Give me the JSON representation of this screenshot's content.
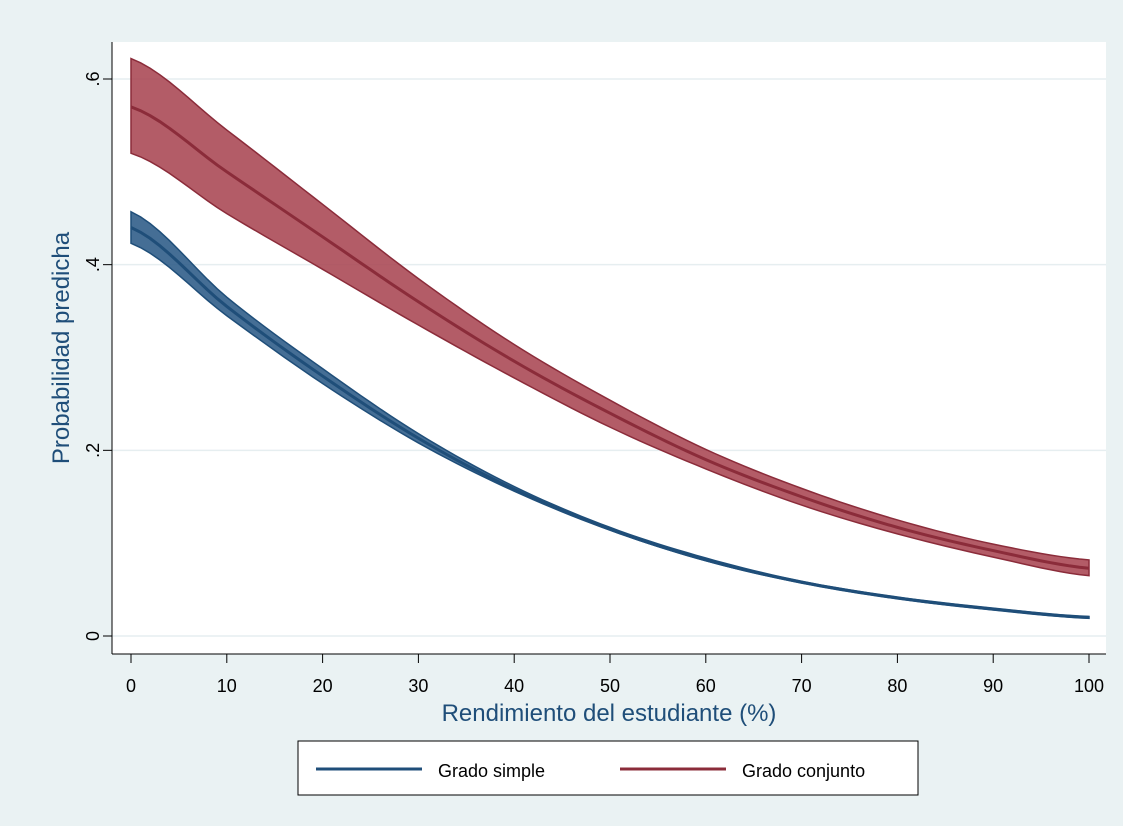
{
  "chart_data": {
    "type": "line",
    "title": "",
    "xlabel": "Rendimiento del estudiante (%)",
    "ylabel": "Probabilidad predicha",
    "xlim": [
      0,
      100
    ],
    "ylim": [
      0,
      0.6
    ],
    "xticks": [
      0,
      10,
      20,
      30,
      40,
      50,
      60,
      70,
      80,
      90,
      100
    ],
    "yticks": [
      0,
      0.2,
      0.4,
      0.6
    ],
    "xtick_labels": [
      "0",
      "10",
      "20",
      "30",
      "40",
      "50",
      "60",
      "70",
      "80",
      "90",
      "100"
    ],
    "ytick_labels": [
      "0",
      ".2",
      ".4",
      ".6"
    ],
    "grid": true,
    "legend_position": "bottom",
    "series": [
      {
        "name": "Grado simple",
        "color": "#1f4e79",
        "band_color": "#2b5a86",
        "x": [
          0,
          10,
          20,
          30,
          40,
          50,
          60,
          70,
          80,
          90,
          100
        ],
        "y": [
          0.44,
          0.355,
          0.28,
          0.213,
          0.158,
          0.115,
          0.082,
          0.058,
          0.041,
          0.029,
          0.02
        ],
        "lower": [
          0.423,
          0.345,
          0.272,
          0.208,
          0.156,
          0.114,
          0.081,
          0.057,
          0.04,
          0.028,
          0.019
        ],
        "upper": [
          0.457,
          0.365,
          0.288,
          0.218,
          0.161,
          0.117,
          0.084,
          0.059,
          0.042,
          0.03,
          0.021
        ]
      },
      {
        "name": "Grado conjunto",
        "color": "#8b2c3a",
        "band_color": "#a84652",
        "x": [
          0,
          10,
          20,
          30,
          40,
          50,
          60,
          70,
          80,
          90,
          100
        ],
        "y": [
          0.57,
          0.5,
          0.43,
          0.36,
          0.296,
          0.24,
          0.19,
          0.15,
          0.117,
          0.092,
          0.073
        ],
        "lower": [
          0.52,
          0.455,
          0.395,
          0.335,
          0.278,
          0.225,
          0.18,
          0.141,
          0.11,
          0.085,
          0.065
        ],
        "upper": [
          0.622,
          0.545,
          0.465,
          0.385,
          0.314,
          0.254,
          0.201,
          0.159,
          0.125,
          0.099,
          0.082
        ]
      }
    ]
  }
}
